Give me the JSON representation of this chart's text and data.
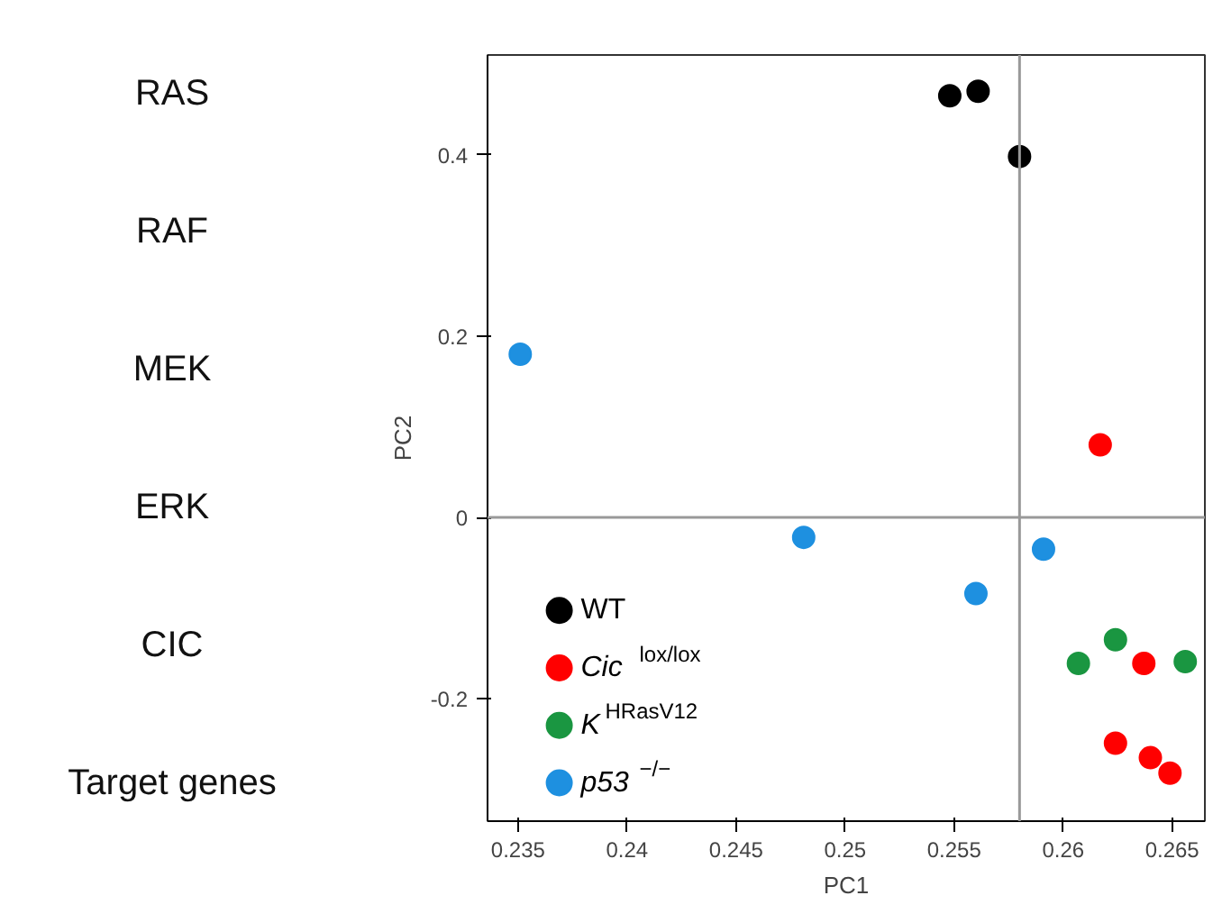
{
  "chart_data": [
    {
      "type": "other",
      "annotations": [
        "RAS",
        "RAF",
        "MEK",
        "ERK",
        "CIC",
        "Target genes"
      ]
    },
    {
      "type": "scatter",
      "xlabel": "PC1",
      "ylabel": "PC2",
      "xlim": [
        0.2336,
        0.2665
      ],
      "ylim": [
        -0.335,
        0.51
      ],
      "xticks": [
        0.235,
        0.24,
        0.245,
        0.25,
        0.255,
        0.26,
        0.265
      ],
      "yticks": [
        {
          "value": -0.2,
          "label": "-0.2"
        },
        0,
        0.2,
        0.4
      ],
      "grid": false,
      "legend": "bottom left",
      "marker": "circle",
      "ref_lines": [
        {
          "axis": "x",
          "value": 0.258,
          "color": "#999999"
        },
        {
          "axis": "y",
          "value": 0,
          "color": "#999999"
        }
      ],
      "series": [
        {
          "name": "WT",
          "color": "#000000",
          "x": [
            0.2548,
            0.2561,
            0.258
          ],
          "values": [
            0.465,
            0.47,
            0.398
          ]
        },
        {
          "name": "Cic$^{lox/lox}$",
          "color": "#ff0000",
          "x": [
            0.2617,
            0.2637,
            0.2624,
            0.264,
            0.2649
          ],
          "values": [
            0.08,
            -0.161,
            -0.249,
            -0.265,
            -0.282
          ]
        },
        {
          "name": "K$^{HRasV12}$",
          "color": "#1a9641",
          "x": [
            0.2607,
            0.2624,
            0.2656
          ],
          "values": [
            -0.161,
            -0.135,
            -0.159
          ]
        },
        {
          "name": "p53$^{−/−}$",
          "color": "#1e90e0",
          "x": [
            0.2351,
            0.2481,
            0.256,
            0.2591
          ],
          "values": [
            0.18,
            -0.022,
            -0.084,
            -0.035
          ]
        }
      ]
    }
  ]
}
